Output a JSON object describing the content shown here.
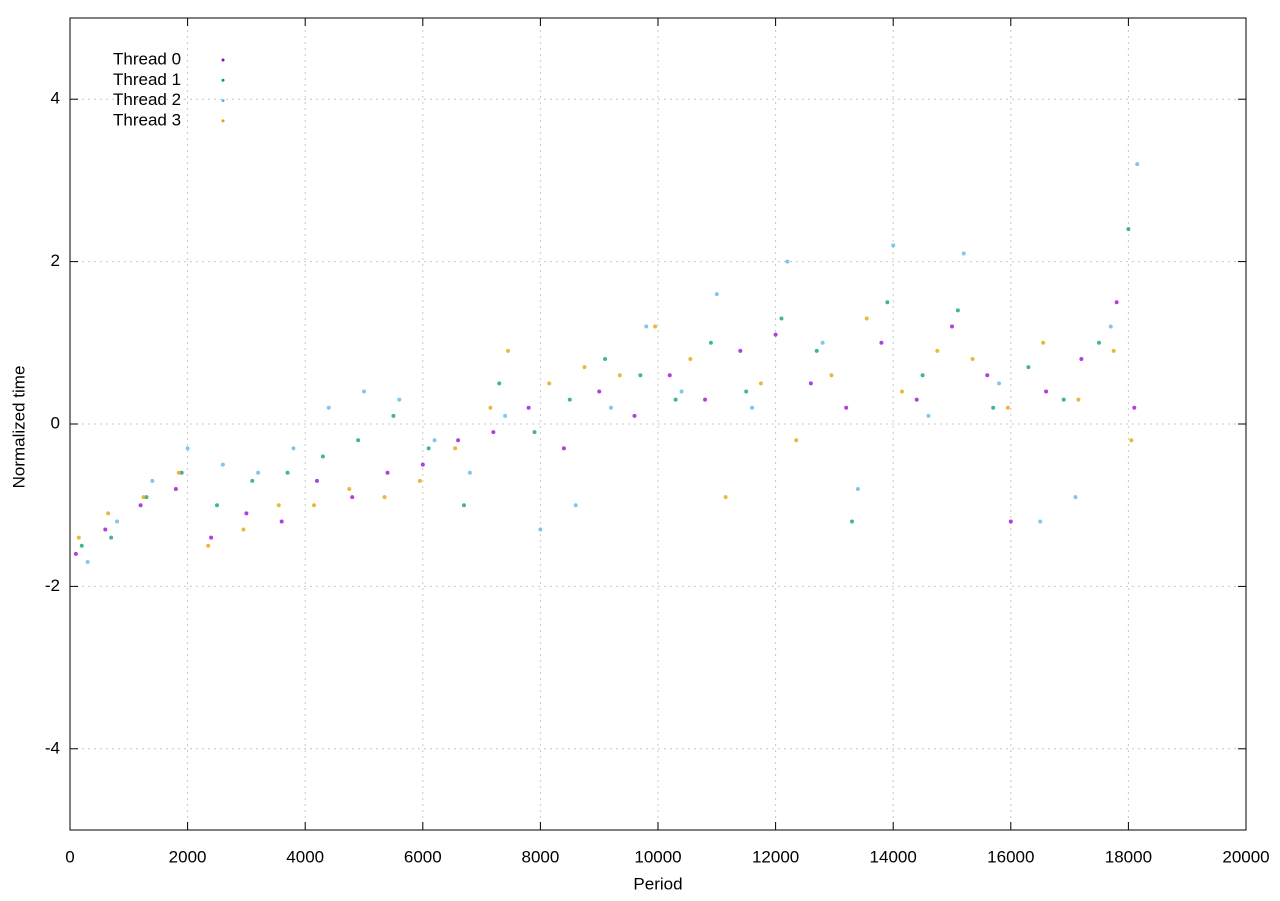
{
  "chart_data": {
    "type": "scatter",
    "xlabel": "Period",
    "ylabel": "Normalized time",
    "xlim": [
      0,
      20000
    ],
    "ylim": [
      -5,
      5
    ],
    "xticks": [
      0,
      2000,
      4000,
      6000,
      8000,
      10000,
      12000,
      14000,
      16000,
      18000,
      20000
    ],
    "yticks": [
      -4,
      -2,
      0,
      2,
      4
    ],
    "grid": true,
    "legend": "top-left",
    "series": [
      {
        "name": "Thread 0",
        "color": "#9400d3",
        "x": [
          100,
          600,
          1200,
          1800,
          2400,
          3000,
          3600,
          4200,
          4800,
          5400,
          6000,
          6600,
          7200,
          7800,
          8400,
          9000,
          9600,
          10200,
          10800,
          11400,
          12000,
          12600,
          13200,
          13800,
          14400,
          15000,
          15600,
          16000,
          16600,
          17200,
          17800,
          18100
        ],
        "values": [
          -1.6,
          -1.3,
          -1.0,
          -0.8,
          -1.4,
          -1.1,
          -1.2,
          -0.7,
          -0.9,
          -0.6,
          -0.5,
          -0.2,
          -0.1,
          0.2,
          -0.3,
          0.4,
          0.1,
          0.6,
          0.3,
          0.9,
          1.1,
          0.5,
          0.2,
          1.0,
          0.3,
          1.2,
          0.6,
          -1.2,
          0.4,
          0.8,
          1.5,
          0.2
        ]
      },
      {
        "name": "Thread 1",
        "color": "#009e73",
        "x": [
          200,
          700,
          1300,
          1900,
          2500,
          3100,
          3700,
          4300,
          4900,
          5500,
          6100,
          6700,
          7300,
          7900,
          8500,
          9100,
          9700,
          10300,
          10900,
          11500,
          12100,
          12700,
          13300,
          13900,
          14500,
          15100,
          15700,
          16300,
          16900,
          17500,
          18000
        ],
        "values": [
          -1.5,
          -1.4,
          -0.9,
          -0.6,
          -1.0,
          -0.7,
          -0.6,
          -0.4,
          -0.2,
          0.1,
          -0.3,
          -1.0,
          0.5,
          -0.1,
          0.3,
          0.8,
          0.6,
          0.3,
          1.0,
          0.4,
          1.3,
          0.9,
          -1.2,
          1.5,
          0.6,
          1.4,
          0.2,
          0.7,
          0.3,
          1.0,
          2.4
        ]
      },
      {
        "name": "Thread 2",
        "color": "#56b4e9",
        "x": [
          300,
          800,
          1400,
          2000,
          2600,
          3200,
          3800,
          4400,
          5000,
          5600,
          6200,
          6800,
          7400,
          8000,
          8600,
          9200,
          9800,
          10400,
          11000,
          11600,
          12200,
          12800,
          13400,
          14000,
          14600,
          15200,
          15800,
          16500,
          17100,
          17700,
          18150
        ],
        "values": [
          -1.7,
          -1.2,
          -0.7,
          -0.3,
          -0.5,
          -0.6,
          -0.3,
          0.2,
          0.4,
          0.3,
          -0.2,
          -0.6,
          0.1,
          -1.3,
          -1.0,
          0.2,
          1.2,
          0.4,
          1.6,
          0.2,
          2.0,
          1.0,
          -0.8,
          2.2,
          0.1,
          2.1,
          0.5,
          -1.2,
          -0.9,
          1.2,
          3.2
        ]
      },
      {
        "name": "Thread 3",
        "color": "#e69f00",
        "x": [
          150,
          650,
          1250,
          1850,
          2350,
          2950,
          3550,
          4150,
          4750,
          5350,
          5950,
          6550,
          7150,
          7450,
          8150,
          8750,
          9350,
          9950,
          10550,
          11150,
          11750,
          12350,
          12950,
          13550,
          14150,
          14750,
          15350,
          15950,
          16550,
          17150,
          17750,
          18050
        ],
        "values": [
          -1.4,
          -1.1,
          -0.9,
          -0.6,
          -1.5,
          -1.3,
          -1.0,
          -1.0,
          -0.8,
          -0.9,
          -0.7,
          -0.3,
          0.2,
          0.9,
          0.5,
          0.7,
          0.6,
          1.2,
          0.8,
          -0.9,
          0.5,
          -0.2,
          0.6,
          1.3,
          0.4,
          0.9,
          0.8,
          0.2,
          1.0,
          0.3,
          0.9,
          -0.2
        ]
      }
    ]
  }
}
